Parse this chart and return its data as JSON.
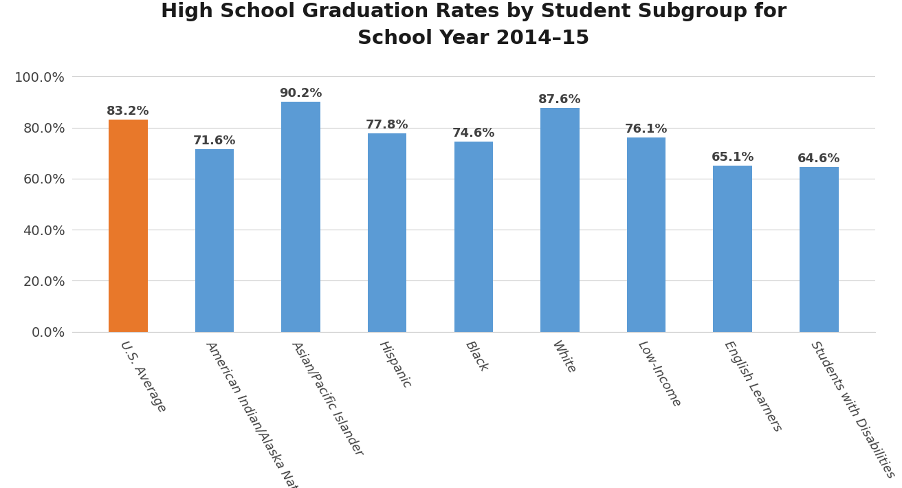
{
  "title": "High School Graduation Rates by Student Subgroup for\nSchool Year 2014–15",
  "categories": [
    "U.S. Average",
    "American Indian/Alaska Native",
    "Asian/Pacific Islander",
    "Hispanic",
    "Black",
    "White",
    "Low-Income",
    "English Learners",
    "Students with Disabilities"
  ],
  "values": [
    83.2,
    71.6,
    90.2,
    77.8,
    74.6,
    87.6,
    76.1,
    65.1,
    64.6
  ],
  "bar_colors": [
    "#E8782A",
    "#5B9BD5",
    "#5B9BD5",
    "#5B9BD5",
    "#5B9BD5",
    "#5B9BD5",
    "#5B9BD5",
    "#5B9BD5",
    "#5B9BD5"
  ],
  "ylim": [
    0,
    107
  ],
  "yticks": [
    0,
    20,
    40,
    60,
    80,
    100
  ],
  "ytick_labels": [
    "0.0%",
    "20.0%",
    "40.0%",
    "60.0%",
    "80.0%",
    "100.0%"
  ],
  "background_color": "#FFFFFF",
  "title_fontsize": 21,
  "tick_fontsize": 14,
  "value_fontsize": 13,
  "xlabel_fontsize": 13,
  "bar_width": 0.45,
  "grid_color": "#D0D0D0",
  "label_rotation": -60,
  "text_color": "#404040"
}
